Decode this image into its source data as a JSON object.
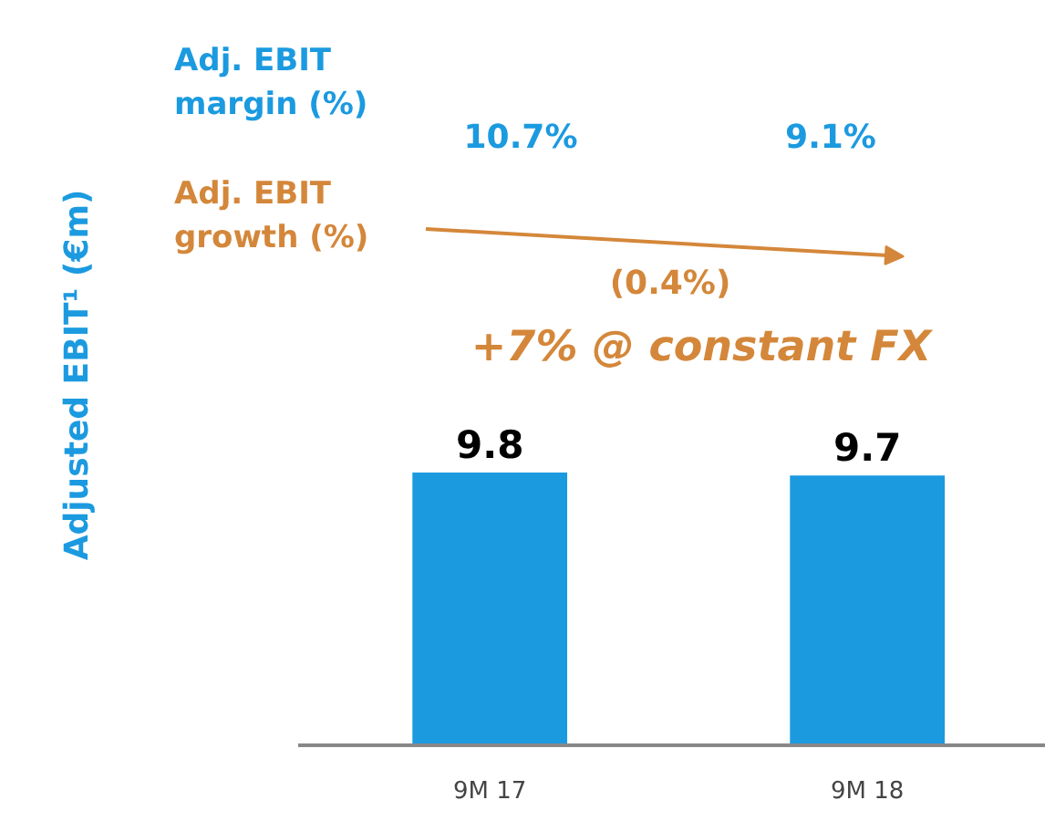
{
  "chart_data": {
    "type": "bar",
    "categories": [
      "9M 17",
      "9M 18"
    ],
    "values": [
      9.8,
      9.7
    ],
    "color": "#1b9ae0",
    "data_labels": true,
    "grid": false,
    "annotations": [
      "Adj. EBIT\nmargin (%)",
      "10.7%",
      "9.1%",
      "Adj. EBIT\ngrowth (%)",
      "(0.4%)",
      "+7% @ constant FX",
      "Adjusted EBIT¹ (€m)"
    ]
  }
}
